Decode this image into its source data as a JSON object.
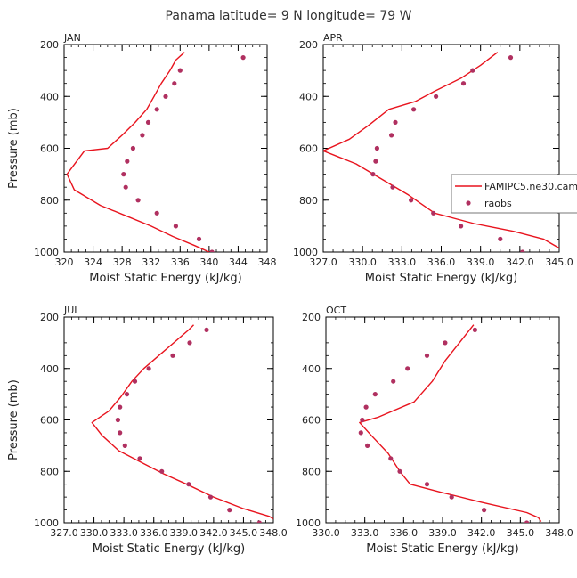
{
  "figure": {
    "title": "Panama  latitude= 9 N longitude= 79 W"
  },
  "chart_data": [
    {
      "type": "line",
      "title": "JAN",
      "xlabel": "Moist Static Energy (kJ/kg)",
      "ylabel": "Pressure (mb)",
      "xlim": [
        320,
        348
      ],
      "ylim": [
        200,
        1000
      ],
      "y_inverted": true,
      "xticks": [
        320,
        324,
        328,
        332,
        336,
        340,
        344,
        348
      ],
      "xtick_labels": [
        "320",
        "324",
        "328",
        "332",
        "336",
        "340",
        "344",
        "348"
      ],
      "yticks": [
        200,
        400,
        600,
        800,
        1000
      ],
      "ytick_labels": [
        "200",
        "400",
        "600",
        "800",
        "1000"
      ],
      "show_ylabel": true,
      "legend": null,
      "series": [
        {
          "type": "line",
          "color": "#e8141e",
          "points": [
            [
              336.6,
              230
            ],
            [
              335.4,
              260
            ],
            [
              334.6,
              300
            ],
            [
              333.4,
              350
            ],
            [
              332.4,
              400
            ],
            [
              331.4,
              450
            ],
            [
              329.8,
              500
            ],
            [
              328.0,
              550
            ],
            [
              326.0,
              600
            ],
            [
              322.8,
              610
            ],
            [
              320.4,
              700
            ],
            [
              321.4,
              760
            ],
            [
              325.0,
              820
            ],
            [
              328.5,
              860
            ],
            [
              332.0,
              900
            ],
            [
              335.0,
              940
            ],
            [
              338.0,
              975
            ],
            [
              340.0,
              1000
            ]
          ]
        },
        {
          "type": "scatter",
          "color": "#b03060",
          "points": [
            [
              344.7,
              250
            ],
            [
              336.0,
              300
            ],
            [
              335.2,
              350
            ],
            [
              334.0,
              400
            ],
            [
              332.8,
              450
            ],
            [
              331.6,
              500
            ],
            [
              330.8,
              550
            ],
            [
              329.5,
              600
            ],
            [
              328.7,
              650
            ],
            [
              328.2,
              700
            ],
            [
              328.5,
              750
            ],
            [
              330.2,
              800
            ],
            [
              332.8,
              850
            ],
            [
              335.4,
              900
            ],
            [
              338.6,
              950
            ],
            [
              340.4,
              1000
            ]
          ]
        }
      ]
    },
    {
      "type": "line",
      "title": "APR",
      "xlabel": "Moist Static Energy (kJ/kg)",
      "ylabel": "",
      "xlim": [
        327,
        345
      ],
      "ylim": [
        200,
        1000
      ],
      "y_inverted": true,
      "xticks": [
        327,
        330,
        333,
        336,
        339,
        342,
        345
      ],
      "xtick_labels": [
        "327.0",
        "330.0",
        "333.0",
        "336.0",
        "339.0",
        "342.0",
        "345.0"
      ],
      "yticks": [
        200,
        400,
        600,
        800,
        1000
      ],
      "ytick_labels": [
        "200",
        "400",
        "600",
        "800",
        "1000"
      ],
      "show_ylabel": false,
      "legend": {
        "placement": "right",
        "entries": [
          {
            "label": "FAMIPC5.ne30.cam.h0.clim.TOT.nc",
            "kind": "line",
            "color": "#e8141e"
          },
          {
            "label": "raobs",
            "kind": "marker",
            "color": "#b03060"
          }
        ]
      },
      "series": [
        {
          "type": "line",
          "color": "#e8141e",
          "points": [
            [
              340.3,
              230
            ],
            [
              339.0,
              280
            ],
            [
              337.5,
              330
            ],
            [
              335.5,
              380
            ],
            [
              334.0,
              420
            ],
            [
              332.0,
              450
            ],
            [
              330.5,
              510
            ],
            [
              329.0,
              565
            ],
            [
              327.0,
              610
            ],
            [
              329.5,
              660
            ],
            [
              331.5,
              720
            ],
            [
              333.5,
              780
            ],
            [
              335.5,
              850
            ],
            [
              338.5,
              890
            ],
            [
              341.5,
              920
            ],
            [
              343.8,
              950
            ],
            [
              345.0,
              985
            ]
          ]
        },
        {
          "type": "scatter",
          "color": "#b03060",
          "points": [
            [
              341.3,
              250
            ],
            [
              338.4,
              300
            ],
            [
              337.7,
              350
            ],
            [
              335.6,
              400
            ],
            [
              333.9,
              450
            ],
            [
              332.5,
              500
            ],
            [
              332.2,
              550
            ],
            [
              331.1,
              600
            ],
            [
              331.0,
              650
            ],
            [
              330.8,
              700
            ],
            [
              332.3,
              750
            ],
            [
              333.7,
              800
            ],
            [
              335.4,
              850
            ],
            [
              337.5,
              900
            ],
            [
              340.5,
              950
            ],
            [
              342.2,
              1000
            ]
          ]
        }
      ]
    },
    {
      "type": "line",
      "title": "JUL",
      "xlabel": "Moist Static Energy (kJ/kg)",
      "ylabel": "Pressure (mb)",
      "xlim": [
        327,
        348
      ],
      "ylim": [
        200,
        1000
      ],
      "y_inverted": true,
      "xticks": [
        327,
        330,
        333,
        336,
        339,
        342,
        345,
        348
      ],
      "xtick_labels": [
        "327.0",
        "330.0",
        "333.0",
        "336.0",
        "339.0",
        "342.0",
        "345.0",
        "348.0"
      ],
      "yticks": [
        200,
        400,
        600,
        800,
        1000
      ],
      "ytick_labels": [
        "200",
        "400",
        "600",
        "800",
        "1000"
      ],
      "show_ylabel": true,
      "legend": null,
      "series": [
        {
          "type": "line",
          "color": "#e8141e",
          "points": [
            [
              340.0,
              230
            ],
            [
              339.5,
              250
            ],
            [
              338.0,
              300
            ],
            [
              336.5,
              350
            ],
            [
              335.0,
              400
            ],
            [
              333.8,
              450
            ],
            [
              332.7,
              510
            ],
            [
              331.5,
              565
            ],
            [
              329.8,
              610
            ],
            [
              330.8,
              660
            ],
            [
              332.5,
              720
            ],
            [
              335.0,
              770
            ],
            [
              337.0,
              810
            ],
            [
              339.3,
              850
            ],
            [
              342.0,
              900
            ],
            [
              345.0,
              945
            ],
            [
              347.6,
              975
            ],
            [
              348.0,
              985
            ]
          ]
        },
        {
          "type": "scatter",
          "color": "#b03060",
          "points": [
            [
              341.3,
              250
            ],
            [
              339.6,
              300
            ],
            [
              337.9,
              350
            ],
            [
              335.5,
              400
            ],
            [
              334.1,
              450
            ],
            [
              333.3,
              500
            ],
            [
              332.6,
              550
            ],
            [
              332.4,
              600
            ],
            [
              332.6,
              650
            ],
            [
              333.1,
              700
            ],
            [
              334.6,
              750
            ],
            [
              336.8,
              800
            ],
            [
              339.5,
              850
            ],
            [
              341.7,
              900
            ],
            [
              343.6,
              950
            ],
            [
              346.6,
              1000
            ]
          ]
        }
      ]
    },
    {
      "type": "line",
      "title": "OCT",
      "xlabel": "Moist Static Energy (kJ/kg)",
      "ylabel": "",
      "xlim": [
        330,
        348
      ],
      "ylim": [
        200,
        1000
      ],
      "y_inverted": true,
      "xticks": [
        330,
        333,
        336,
        339,
        342,
        345,
        348
      ],
      "xtick_labels": [
        "330.0",
        "333.0",
        "336.0",
        "339.0",
        "342.0",
        "345.0",
        "348.0"
      ],
      "yticks": [
        200,
        400,
        600,
        800,
        1000
      ],
      "ytick_labels": [
        "200",
        "400",
        "600",
        "800",
        "1000"
      ],
      "show_ylabel": false,
      "legend": null,
      "series": [
        {
          "type": "line",
          "color": "#e8141e",
          "points": [
            [
              341.4,
              230
            ],
            [
              340.3,
              300
            ],
            [
              339.2,
              370
            ],
            [
              338.2,
              450
            ],
            [
              336.8,
              530
            ],
            [
              334.0,
              590
            ],
            [
              332.6,
              610
            ],
            [
              333.5,
              660
            ],
            [
              334.8,
              730
            ],
            [
              335.7,
              800
            ],
            [
              336.5,
              850
            ],
            [
              338.8,
              880
            ],
            [
              342.0,
              920
            ],
            [
              345.5,
              960
            ],
            [
              346.4,
              980
            ],
            [
              346.6,
              995
            ]
          ]
        },
        {
          "type": "scatter",
          "color": "#b03060",
          "points": [
            [
              341.5,
              250
            ],
            [
              339.2,
              300
            ],
            [
              337.8,
              350
            ],
            [
              336.3,
              400
            ],
            [
              335.2,
              450
            ],
            [
              333.8,
              500
            ],
            [
              333.1,
              550
            ],
            [
              332.8,
              600
            ],
            [
              332.7,
              650
            ],
            [
              333.2,
              700
            ],
            [
              335.0,
              750
            ],
            [
              335.7,
              800
            ],
            [
              337.8,
              850
            ],
            [
              339.7,
              900
            ],
            [
              342.2,
              950
            ],
            [
              345.5,
              1000
            ]
          ]
        }
      ]
    }
  ]
}
